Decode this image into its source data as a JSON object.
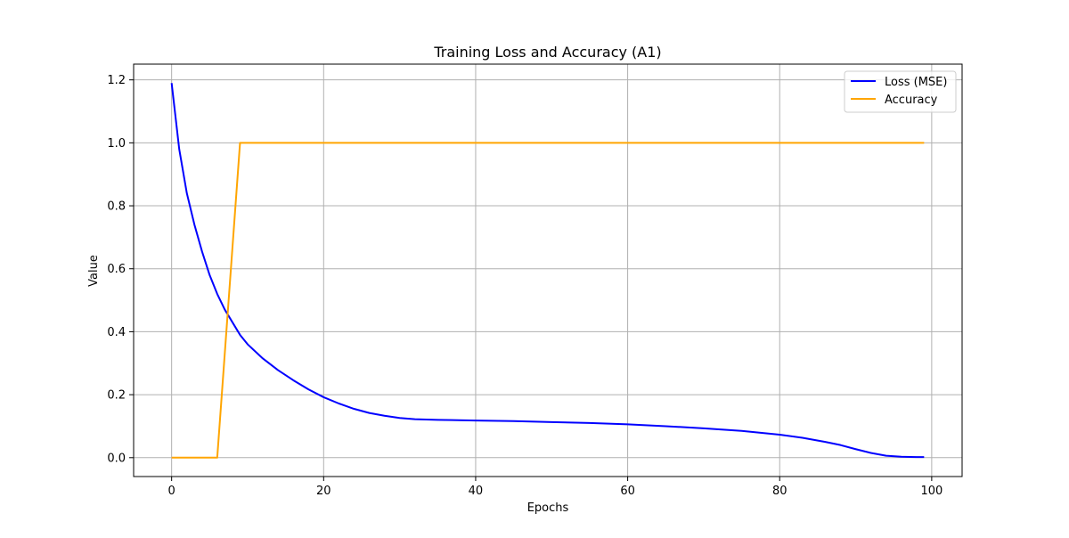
{
  "chart_data": {
    "type": "line",
    "title": "Training Loss and Accuracy (A1)",
    "xlabel": "Epochs",
    "ylabel": "Value",
    "xlim": [
      -5,
      104
    ],
    "ylim": [
      -0.06,
      1.25
    ],
    "xticks": [
      0,
      20,
      40,
      60,
      80,
      100
    ],
    "yticks": [
      0.0,
      0.2,
      0.4,
      0.6,
      0.8,
      1.0,
      1.2
    ],
    "xtick_labels": [
      "0",
      "20",
      "40",
      "60",
      "80",
      "100"
    ],
    "ytick_labels": [
      "0.0",
      "0.2",
      "0.4",
      "0.6",
      "0.8",
      "1.0",
      "1.2"
    ],
    "grid": true,
    "legend_position": "top-right",
    "series": [
      {
        "name": "Loss (MSE)",
        "color": "#0000ff",
        "x": [
          0,
          1,
          2,
          3,
          4,
          5,
          6,
          7,
          8,
          9,
          10,
          12,
          14,
          16,
          18,
          20,
          22,
          24,
          26,
          28,
          30,
          32,
          35,
          40,
          45,
          50,
          55,
          60,
          65,
          70,
          75,
          80,
          83,
          86,
          88,
          90,
          92,
          94,
          96,
          98,
          99
        ],
        "y": [
          1.19,
          0.98,
          0.84,
          0.74,
          0.655,
          0.58,
          0.52,
          0.47,
          0.43,
          0.39,
          0.36,
          0.315,
          0.278,
          0.246,
          0.217,
          0.192,
          0.172,
          0.155,
          0.142,
          0.133,
          0.126,
          0.122,
          0.12,
          0.118,
          0.116,
          0.113,
          0.11,
          0.106,
          0.1,
          0.093,
          0.085,
          0.073,
          0.063,
          0.05,
          0.04,
          0.027,
          0.015,
          0.006,
          0.003,
          0.002,
          0.002
        ]
      },
      {
        "name": "Accuracy",
        "color": "#ffa500",
        "x": [
          0,
          6,
          9,
          99
        ],
        "y": [
          0.0,
          0.0,
          1.0,
          1.0
        ]
      }
    ]
  }
}
